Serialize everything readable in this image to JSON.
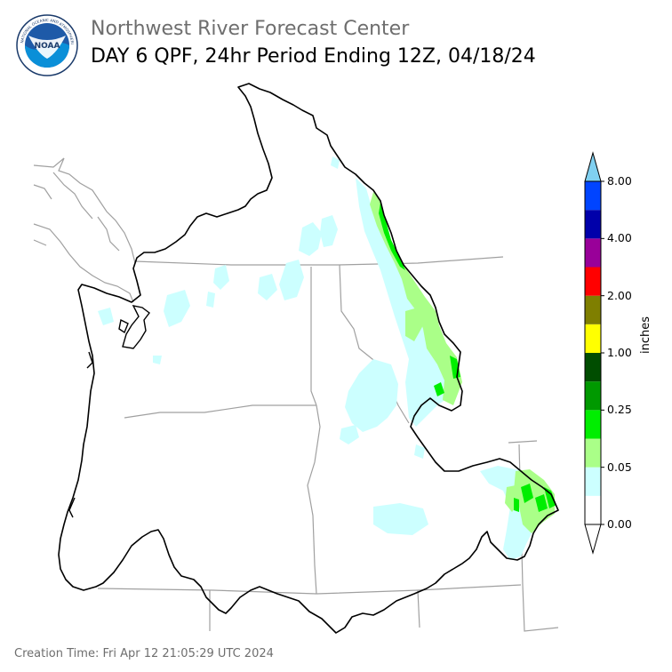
{
  "title": "Northwest River Forecast Center",
  "subtitle": "DAY 6 QPF, 24hr Period Ending 12Z, 04/18/24",
  "footer": "Creation Time: Fri Apr 12 21:05:29 UTC 2024",
  "logo": {
    "text": "NOAA",
    "ring_text": "NATIONAL OCEANIC AND ATMOSPHERIC ADMINISTRATION · U.S. DEPARTMENT OF COMMERCE",
    "icon": "noaa-logo-icon"
  },
  "colorbar": {
    "units": "inches",
    "colors": [
      "#ffffff",
      "#ccffff",
      "#aaff88",
      "#00ee00",
      "#009900",
      "#004d00",
      "#ffff00",
      "#7f7f00",
      "#ff0000",
      "#990099",
      "#0000aa",
      "#0044ff"
    ],
    "over_color": "#80d0f0",
    "under_color": "#ffffff",
    "labels": [
      "0.00",
      "0.05",
      "0.25",
      "1.00",
      "2.00",
      "4.00",
      "8.00"
    ]
  },
  "map": {
    "region": "Columbia River Basin",
    "basin_outline_color": "#000000",
    "state_line_color": "#a0a0a0"
  }
}
